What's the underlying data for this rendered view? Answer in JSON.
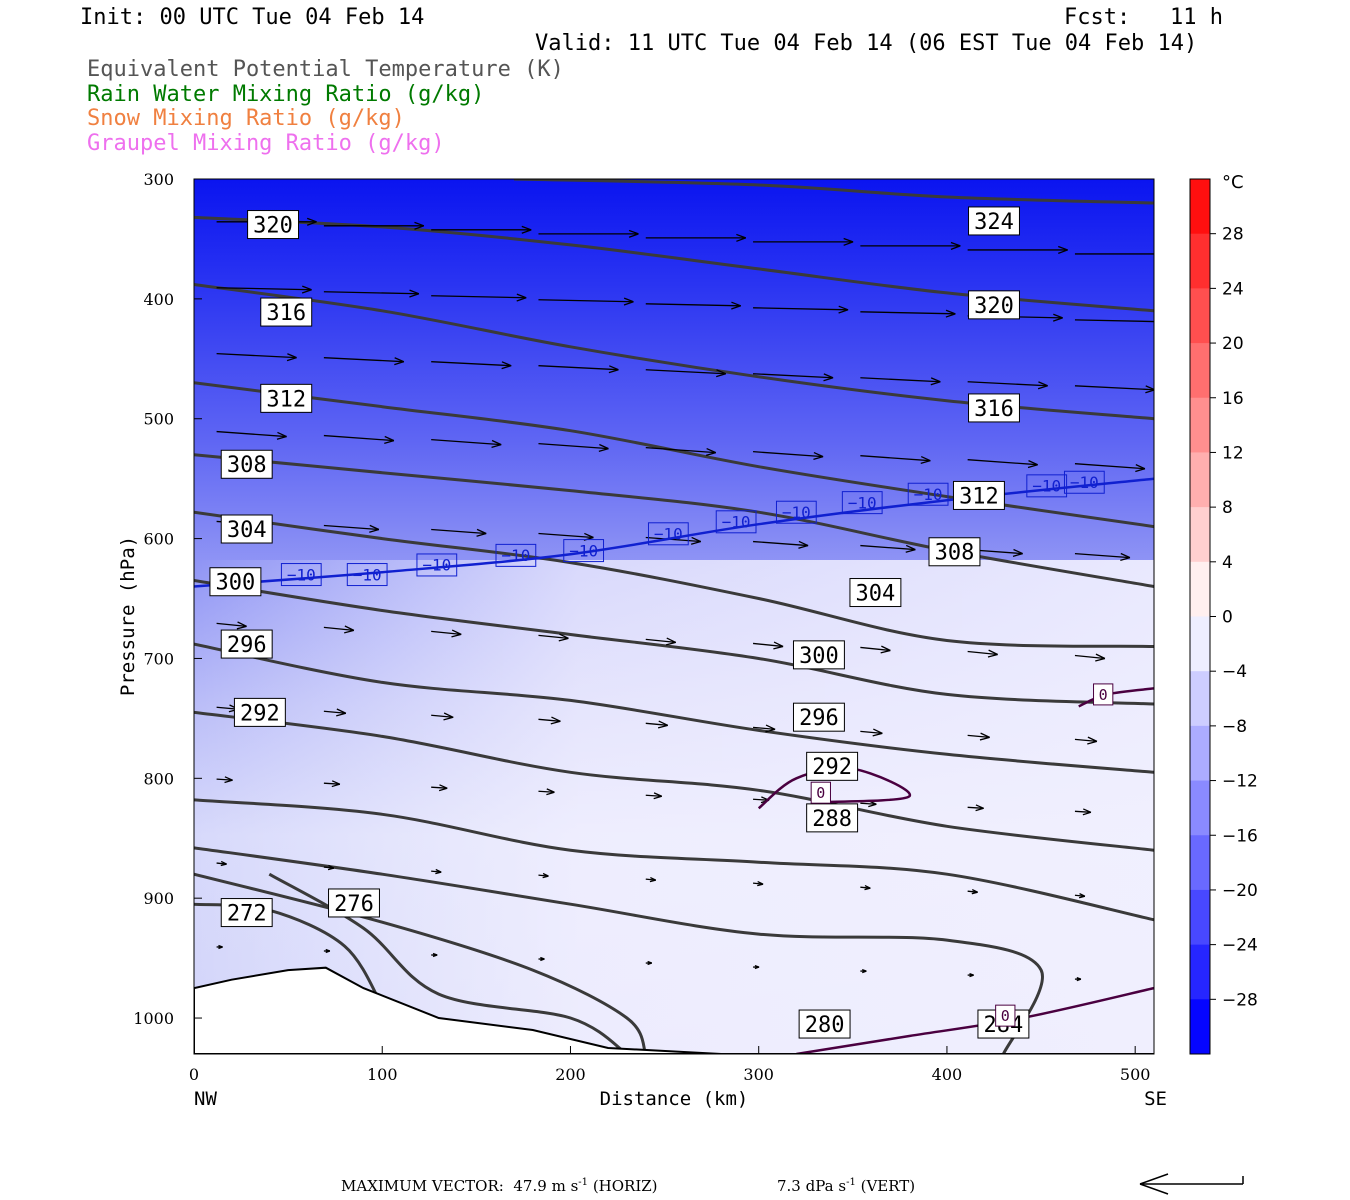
{
  "header": {
    "init": "Init: 00 UTC Tue 04 Feb 14",
    "fcst": "Fcst:   11 h",
    "valid": "Valid: 11 UTC Tue 04 Feb 14 (06 EST Tue 04 Feb 14)"
  },
  "legend": [
    {
      "text": "Equivalent Potential Temperature (K)",
      "color": "#555555"
    },
    {
      "text": "Rain Water Mixing Ratio (g/kg)",
      "color": "#007a00"
    },
    {
      "text": "Snow Mixing Ratio (g/kg)",
      "color": "#f08040"
    },
    {
      "text": "Graupel Mixing Ratio (g/kg)",
      "color": "#ee70ee"
    }
  ],
  "footer": {
    "label": "MAXIMUM VECTOR:",
    "horiz_value": "47.9",
    "horiz_unit": "m s",
    "horiz_exp": "-1",
    "horiz_tag": "(HORIZ)",
    "vert_value": "7.3",
    "vert_unit": "dPa s",
    "vert_exp": "-1",
    "vert_tag": "(VERT)"
  },
  "chart_data": {
    "type": "cross-section",
    "xlabel": "Distance (km)",
    "ylabel": "Pressure (hPa)",
    "xlim": [
      0,
      510
    ],
    "ylim": [
      1030,
      300
    ],
    "x_ticks": [
      0,
      100,
      200,
      300,
      400,
      500
    ],
    "y_ticks": [
      300,
      400,
      500,
      600,
      700,
      800,
      900,
      1000
    ],
    "x_left_label": "NW",
    "x_right_label": "SE",
    "colorbar": {
      "unit": "°C",
      "labels": [
        28,
        24,
        20,
        16,
        12,
        8,
        4,
        0,
        -4,
        -8,
        -12,
        -16,
        -20,
        -24,
        -28
      ],
      "min": -32,
      "max": 32,
      "step": 4
    },
    "theta_e_contours": [
      {
        "value": 324,
        "points": [
          [
            170,
            300
          ],
          [
            300,
            305
          ],
          [
            400,
            315
          ],
          [
            510,
            320
          ]
        ],
        "label_at": [
          425,
          335
        ]
      },
      {
        "value": 320,
        "points": [
          [
            0,
            332
          ],
          [
            100,
            340
          ],
          [
            200,
            355
          ],
          [
            300,
            375
          ],
          [
            400,
            395
          ],
          [
            510,
            410
          ]
        ],
        "label_at": [
          42,
          338
        ],
        "label2_at": [
          425,
          405
        ]
      },
      {
        "value": 316,
        "points": [
          [
            0,
            388
          ],
          [
            100,
            410
          ],
          [
            200,
            440
          ],
          [
            300,
            465
          ],
          [
            400,
            485
          ],
          [
            510,
            500
          ]
        ],
        "label_at": [
          49,
          411
        ],
        "label2_at": [
          425,
          491
        ]
      },
      {
        "value": 312,
        "points": [
          [
            0,
            470
          ],
          [
            100,
            490
          ],
          [
            200,
            510
          ],
          [
            300,
            540
          ],
          [
            400,
            565
          ],
          [
            510,
            590
          ]
        ],
        "label_at": [
          49,
          483
        ],
        "label2_at": [
          417,
          564
        ]
      },
      {
        "value": 308,
        "points": [
          [
            0,
            530
          ],
          [
            100,
            545
          ],
          [
            200,
            560
          ],
          [
            300,
            578
          ],
          [
            400,
            610
          ],
          [
            510,
            640
          ]
        ],
        "label_at": [
          28,
          538
        ],
        "label2_at": [
          404,
          611
        ]
      },
      {
        "value": 304,
        "points": [
          [
            0,
            578
          ],
          [
            100,
            600
          ],
          [
            200,
            620
          ],
          [
            300,
            650
          ],
          [
            400,
            685
          ],
          [
            510,
            690
          ]
        ],
        "label_at": [
          28,
          592
        ],
        "label2_at": [
          362,
          645
        ]
      },
      {
        "value": 300,
        "points": [
          [
            0,
            635
          ],
          [
            100,
            660
          ],
          [
            200,
            680
          ],
          [
            300,
            700
          ],
          [
            400,
            730
          ],
          [
            510,
            738
          ]
        ],
        "label_at": [
          22,
          636
        ],
        "label2_at": [
          332,
          697
        ]
      },
      {
        "value": 296,
        "points": [
          [
            0,
            688
          ],
          [
            100,
            720
          ],
          [
            200,
            735
          ],
          [
            300,
            760
          ],
          [
            400,
            780
          ],
          [
            510,
            795
          ]
        ],
        "label_at": [
          28,
          688
        ],
        "label2_at": [
          332,
          749
        ]
      },
      {
        "value": 292,
        "points": [
          [
            0,
            745
          ],
          [
            100,
            765
          ],
          [
            200,
            795
          ],
          [
            300,
            810
          ],
          [
            400,
            840
          ],
          [
            510,
            860
          ]
        ],
        "label_at": [
          35,
          745
        ],
        "label2_at": [
          339,
          790
        ]
      },
      {
        "value": 288,
        "points": [
          [
            0,
            818
          ],
          [
            100,
            830
          ],
          [
            200,
            860
          ],
          [
            300,
            870
          ],
          [
            400,
            880
          ],
          [
            510,
            918
          ]
        ],
        "label_at": [
          339,
          833
        ]
      },
      {
        "value": 284,
        "points": [
          [
            0,
            858
          ],
          [
            100,
            880
          ],
          [
            200,
            905
          ],
          [
            300,
            930
          ],
          [
            400,
            935
          ],
          [
            450,
            960
          ],
          [
            430,
            1030
          ]
        ],
        "label_at": [
          430,
          1005
        ]
      },
      {
        "value": 280,
        "points": [
          [
            0,
            880
          ],
          [
            100,
            920
          ],
          [
            180,
            960
          ],
          [
            230,
            1000
          ],
          [
            240,
            1030
          ]
        ],
        "label_at": [
          335,
          1005
        ]
      },
      {
        "value": 276,
        "points": [
          [
            40,
            880
          ],
          [
            90,
            925
          ],
          [
            130,
            980
          ],
          [
            200,
            1000
          ],
          [
            230,
            1030
          ]
        ],
        "label_at": [
          85,
          904
        ]
      },
      {
        "value": 272,
        "points": [
          [
            0,
            905
          ],
          [
            40,
            910
          ],
          [
            80,
            940
          ],
          [
            100,
            990
          ]
        ],
        "label_at": [
          28,
          912
        ]
      }
    ],
    "isotherm_m10": {
      "value": -10,
      "points": [
        [
          0,
          640
        ],
        [
          100,
          628
        ],
        [
          200,
          613
        ],
        [
          300,
          588
        ],
        [
          400,
          568
        ],
        [
          510,
          550
        ]
      ],
      "labels_at": [
        [
          57,
          630
        ],
        [
          92,
          630
        ],
        [
          129,
          622
        ],
        [
          171,
          614
        ],
        [
          207,
          610
        ],
        [
          252,
          596
        ],
        [
          288,
          586
        ],
        [
          320,
          578
        ],
        [
          355,
          570
        ],
        [
          390,
          563
        ],
        [
          453,
          556
        ],
        [
          473,
          553
        ]
      ]
    },
    "isotherm_0": [
      {
        "points": [
          [
            470,
            740
          ],
          [
            485,
            730
          ],
          [
            510,
            725
          ]
        ],
        "label_at": [
          483,
          730
        ]
      },
      {
        "points": [
          [
            300,
            825
          ],
          [
            320,
            800
          ],
          [
            350,
            792
          ],
          [
            380,
            815
          ],
          [
            330,
            820
          ]
        ],
        "label_at": [
          333,
          812
        ]
      },
      {
        "points": [
          [
            320,
            1030
          ],
          [
            380,
            1015
          ],
          [
            440,
            1000
          ],
          [
            510,
            975
          ]
        ],
        "label_at": [
          431,
          998
        ]
      }
    ],
    "terrain": [
      [
        0,
        975
      ],
      [
        20,
        968
      ],
      [
        50,
        960
      ],
      [
        70,
        958
      ],
      [
        90,
        975
      ],
      [
        130,
        1000
      ],
      [
        180,
        1010
      ],
      [
        220,
        1025
      ],
      [
        280,
        1030
      ],
      [
        510,
        1030
      ]
    ]
  }
}
